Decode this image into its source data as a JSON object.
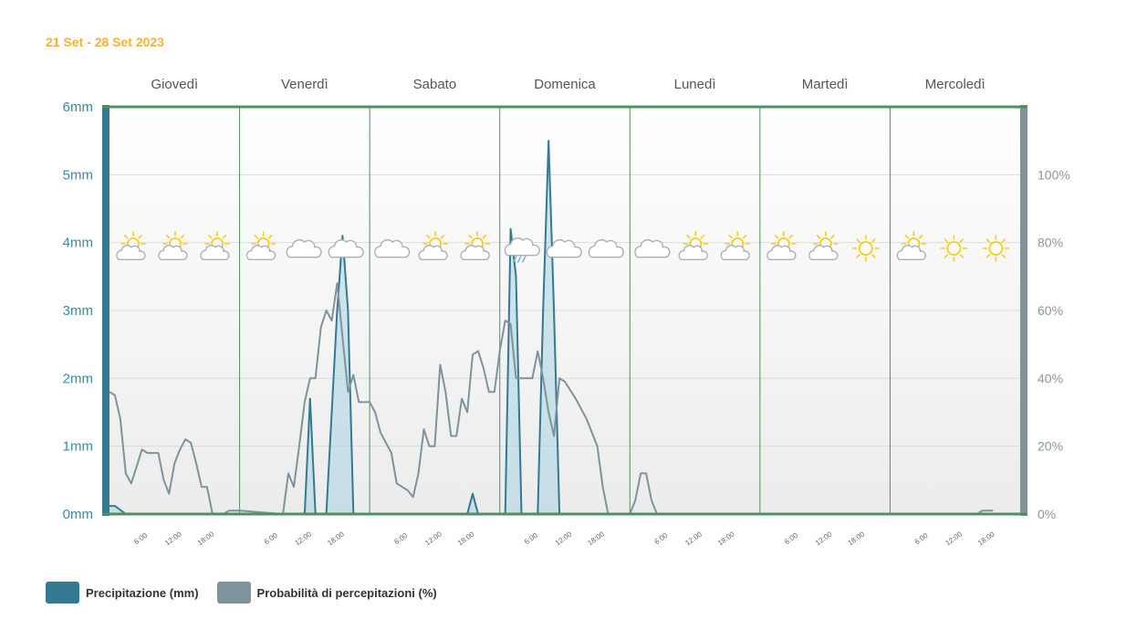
{
  "date_range": "21 Set - 28 Set 2023",
  "colors": {
    "precip": "#357891",
    "prob": "#7f939c",
    "border_top": "#4d9160",
    "sun": "#f5cc18",
    "cloud": "#aab0b5",
    "rain": "#6ab6d9"
  },
  "legend": {
    "precip_label": "Precipitazione (mm)",
    "prob_label": "Probabilità di percepitazioni (%)"
  },
  "chart_data": {
    "type": "area",
    "days": [
      "Giovedì",
      "Venerdì",
      "Sabato",
      "Domenica",
      "Lunedì",
      "Martedì",
      "Mercoledì"
    ],
    "hour_ticks": [
      "6:00",
      "12:00",
      "18:00"
    ],
    "y_left": {
      "ticks": [
        "0mm",
        "1mm",
        "2mm",
        "3mm",
        "4mm",
        "5mm",
        "6mm"
      ],
      "range": [
        0,
        6
      ],
      "unit": "mm"
    },
    "y_right": {
      "ticks": [
        "0%",
        "20%",
        "40%",
        "60%",
        "80%",
        "100%"
      ],
      "range": [
        0,
        120
      ],
      "unit": "%"
    },
    "grid": true,
    "legend_position": "bottom-left",
    "series": [
      {
        "name": "Precipitazione (mm)",
        "axis": "left",
        "points": [
          [
            0,
            0.12
          ],
          [
            1,
            0.12
          ],
          [
            3,
            0
          ],
          [
            33,
            0
          ],
          [
            36,
            0
          ],
          [
            37,
            1.7
          ],
          [
            38,
            0
          ],
          [
            40,
            0
          ],
          [
            42,
            3
          ],
          [
            43,
            4.1
          ],
          [
            44,
            3
          ],
          [
            45,
            0
          ],
          [
            66,
            0
          ],
          [
            67,
            0.3
          ],
          [
            68,
            0
          ],
          [
            73,
            0
          ],
          [
            74,
            4.2
          ],
          [
            75,
            3.5
          ],
          [
            76,
            0
          ],
          [
            79,
            0
          ],
          [
            80,
            3
          ],
          [
            81,
            5.5
          ],
          [
            82,
            3
          ],
          [
            83,
            0
          ],
          [
            168,
            0
          ]
        ]
      },
      {
        "name": "Probabilità di percepitazioni (%)",
        "axis": "right",
        "points": [
          [
            0,
            36
          ],
          [
            1,
            35
          ],
          [
            2,
            28
          ],
          [
            3,
            12
          ],
          [
            4,
            9
          ],
          [
            5,
            14
          ],
          [
            6,
            19
          ],
          [
            7,
            18
          ],
          [
            9,
            18
          ],
          [
            10,
            10
          ],
          [
            11,
            6
          ],
          [
            12,
            15
          ],
          [
            13,
            19
          ],
          [
            14,
            22
          ],
          [
            15,
            21
          ],
          [
            16,
            15
          ],
          [
            17,
            8
          ],
          [
            18,
            8
          ],
          [
            19,
            0
          ],
          [
            21,
            0
          ],
          [
            22,
            1
          ],
          [
            24,
            1
          ],
          [
            32,
            0
          ],
          [
            33,
            12
          ],
          [
            34,
            8
          ],
          [
            35,
            20
          ],
          [
            36,
            33
          ],
          [
            37,
            40
          ],
          [
            38,
            40
          ],
          [
            39,
            55
          ],
          [
            40,
            60
          ],
          [
            41,
            57
          ],
          [
            42,
            68
          ],
          [
            43,
            52
          ],
          [
            44,
            36
          ],
          [
            45,
            41
          ],
          [
            46,
            33
          ],
          [
            48,
            33
          ],
          [
            49,
            30
          ],
          [
            50,
            24
          ],
          [
            52,
            18
          ],
          [
            53,
            9
          ],
          [
            55,
            7
          ],
          [
            56,
            5
          ],
          [
            57,
            12
          ],
          [
            58,
            25
          ],
          [
            59,
            20
          ],
          [
            60,
            20
          ],
          [
            61,
            44
          ],
          [
            62,
            36
          ],
          [
            63,
            23
          ],
          [
            64,
            23
          ],
          [
            65,
            34
          ],
          [
            66,
            30
          ],
          [
            67,
            47
          ],
          [
            68,
            48
          ],
          [
            69,
            43
          ],
          [
            70,
            36
          ],
          [
            71,
            36
          ],
          [
            72,
            48
          ],
          [
            73,
            57
          ],
          [
            74,
            56
          ],
          [
            75,
            40
          ],
          [
            76,
            40
          ],
          [
            77,
            40
          ],
          [
            78,
            40
          ],
          [
            79,
            48
          ],
          [
            80,
            40
          ],
          [
            81,
            30
          ],
          [
            82,
            23
          ],
          [
            83,
            40
          ],
          [
            84,
            39
          ],
          [
            86,
            34
          ],
          [
            88,
            28
          ],
          [
            90,
            20
          ],
          [
            91,
            8
          ],
          [
            92,
            0
          ],
          [
            96,
            0
          ],
          [
            97,
            4
          ],
          [
            98,
            12
          ],
          [
            99,
            12
          ],
          [
            100,
            4
          ],
          [
            101,
            0
          ],
          [
            160,
            0
          ],
          [
            161,
            1
          ],
          [
            163,
            1
          ]
        ]
      }
    ],
    "weather_icons": [
      [
        "sun-cloud",
        "sun-cloud",
        "sun-cloud"
      ],
      [
        "sun-cloud",
        "cloud",
        "cloud"
      ],
      [
        "cloud",
        "sun-cloud",
        "sun-cloud"
      ],
      [
        "rain",
        "cloud",
        "cloud"
      ],
      [
        "cloud",
        "sun-cloud",
        "sun-cloud"
      ],
      [
        "sun-cloud",
        "sun-cloud",
        "sun"
      ],
      [
        "sun-cloud",
        "sun",
        "sun"
      ]
    ]
  }
}
